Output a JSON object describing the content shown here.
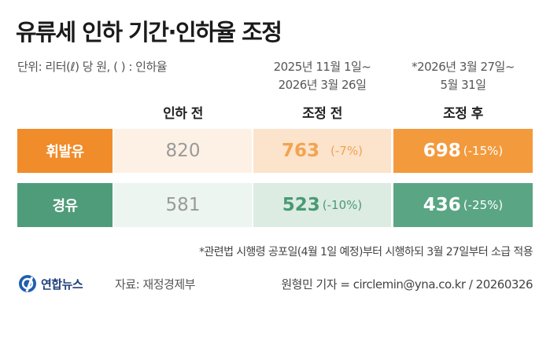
{
  "title": "유류세 인하 기간·인하율 조정",
  "unit_note": "단위: 리터(ℓ) 당 원, ( ) : 인하율",
  "periods": {
    "current": [
      "2025년 11월 1일~",
      "2026년 3월 26일"
    ],
    "new": [
      "*2026년 3월 27일~",
      "5월 31일"
    ]
  },
  "colors": {
    "gasoline_label": "#f08c2a",
    "gasoline_light": "#fbe3cc",
    "gasoline_before": "#fdf1e6",
    "gasoline_after": "#f39a3c",
    "diesel_label": "#4f9c7a",
    "diesel_light": "#dcece3",
    "diesel_before": "#ecf5f0",
    "diesel_after": "#5aa584",
    "gasoline_text": "#f3a34f",
    "diesel_text": "#4a9a74"
  },
  "chart_data": {
    "type": "table",
    "columns": [
      "인하 전",
      "조정 전",
      "조정 후"
    ],
    "rows": [
      {
        "name": "휘발유",
        "before": "820",
        "current": "763",
        "current_pct": "(-7%)",
        "after": "698",
        "after_pct": "(-15%)"
      },
      {
        "name": "경유",
        "before": "581",
        "current": "523",
        "current_pct": "(-10%)",
        "after": "436",
        "after_pct": "(-25%)"
      }
    ]
  },
  "footnote": "*관련법 시행령 공포일(4월 1일 예정)부터 시행하되 3월 27일부터 소급 적용",
  "logo_text": "연합뉴스",
  "source": "자료: 재정경제부",
  "credit": "원형민 기자 = circlemin@yna.co.kr / 20260326"
}
